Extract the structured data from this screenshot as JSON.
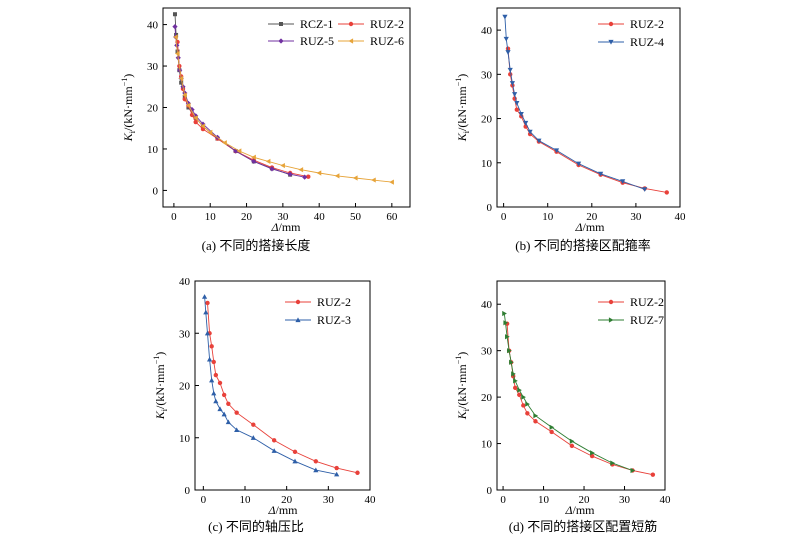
{
  "figure": {
    "panels": [
      {
        "id": "a",
        "caption": "(a) 不同的搭接长度"
      },
      {
        "id": "b",
        "caption": "(b) 不同的搭接区配箍率"
      },
      {
        "id": "c",
        "caption": "(c) 不同的轴压比"
      },
      {
        "id": "d",
        "caption": "(d) 不同的搭接区配置短筋"
      }
    ]
  },
  "chart_data": [
    {
      "id": "a",
      "type": "line",
      "title": "(a) 不同的搭接长度",
      "xlabel_symbol": "Δ",
      "xlabel_unit": "/mm",
      "ylabel_symbol": "K",
      "ylabel_sub": "i",
      "ylabel_unit": "/(kN·mm",
      "ylabel_sup": "−1",
      "ylabel_close": ")",
      "xlim": [
        -3,
        65
      ],
      "ylim": [
        -4,
        44
      ],
      "xticks": [
        0,
        10,
        20,
        30,
        40,
        50,
        60
      ],
      "yticks": [
        0,
        10,
        20,
        30,
        40
      ],
      "grid": false,
      "legend": "top-right, two columns",
      "series": [
        {
          "name": "RCZ-1",
          "color": "#555555",
          "marker": "square",
          "x": [
            0.3,
            0.6,
            1.0,
            1.5,
            2.0,
            3.0,
            4.0,
            6.0,
            8.0,
            12.0,
            17.0,
            22.0,
            27.0,
            32.0
          ],
          "y": [
            42.5,
            37.5,
            33.5,
            29.0,
            26.0,
            22.5,
            20.0,
            17.5,
            15.5,
            12.5,
            9.5,
            7.0,
            5.3,
            3.8
          ]
        },
        {
          "name": "RUZ-2",
          "color": "#e8413a",
          "marker": "circle",
          "x": [
            1.0,
            1.5,
            2.0,
            2.5,
            3.0,
            4.0,
            5.0,
            6.0,
            8.0,
            12.0,
            17.0,
            22.0,
            27.0,
            32.0,
            37.0
          ],
          "y": [
            35.8,
            30.0,
            27.5,
            24.5,
            22.0,
            20.5,
            18.2,
            16.5,
            14.8,
            12.5,
            9.5,
            7.3,
            5.5,
            4.2,
            3.3
          ]
        },
        {
          "name": "RUZ-5",
          "color": "#7030a0",
          "marker": "diamond",
          "x": [
            0.3,
            0.5,
            0.8,
            1.2,
            1.6,
            2.0,
            2.5,
            3.0,
            4.0,
            5.0,
            6.0,
            8.0,
            12.0,
            17.0,
            22.0,
            27.0,
            32.0,
            36.0
          ],
          "y": [
            39.5,
            37.0,
            35.0,
            32.0,
            29.0,
            27.0,
            25.0,
            23.5,
            21.0,
            19.5,
            18.0,
            16.0,
            12.8,
            9.5,
            7.0,
            5.2,
            3.9,
            3.2
          ]
        },
        {
          "name": "RUZ-6",
          "color": "#e7a43a",
          "marker": "triangle-left",
          "x": [
            0.5,
            1.0,
            2.0,
            3.0,
            4.0,
            6.0,
            8.0,
            10.0,
            14.0,
            18.0,
            22.0,
            26.0,
            30.0,
            35.0,
            40.0,
            45.0,
            50.0,
            55.0,
            60.0
          ],
          "y": [
            37.0,
            33.0,
            27.0,
            23.0,
            20.5,
            17.5,
            15.5,
            14.0,
            11.5,
            9.5,
            8.0,
            7.0,
            6.0,
            5.0,
            4.2,
            3.5,
            3.0,
            2.5,
            2.0
          ]
        }
      ]
    },
    {
      "id": "b",
      "type": "line",
      "title": "(b) 不同的搭接区配箍率",
      "xlabel_symbol": "Δ",
      "xlabel_unit": "/mm",
      "ylabel_symbol": "K",
      "ylabel_sub": "i",
      "ylabel_unit": "/(kN·mm",
      "ylabel_sup": "−1",
      "ylabel_close": ")",
      "xlim": [
        -1.5,
        40
      ],
      "ylim": [
        0,
        45
      ],
      "xticks": [
        0,
        10,
        20,
        30,
        40
      ],
      "yticks": [
        0,
        10,
        20,
        30,
        40
      ],
      "grid": false,
      "legend": "top-right",
      "series": [
        {
          "name": "RUZ-2",
          "color": "#e8413a",
          "marker": "circle",
          "x": [
            1.0,
            1.5,
            2.0,
            2.5,
            3.0,
            4.0,
            5.0,
            6.0,
            8.0,
            12.0,
            17.0,
            22.0,
            27.0,
            32.0,
            37.0
          ],
          "y": [
            35.8,
            30.0,
            27.5,
            24.5,
            22.0,
            20.5,
            18.2,
            16.5,
            14.8,
            12.5,
            9.5,
            7.3,
            5.5,
            4.2,
            3.3
          ]
        },
        {
          "name": "RUZ-4",
          "color": "#2e5fa8",
          "marker": "triangle-down",
          "x": [
            0.3,
            0.6,
            1.0,
            1.5,
            2.0,
            2.5,
            3.0,
            4.0,
            5.0,
            6.0,
            8.0,
            12.0,
            17.0,
            22.0,
            27.0,
            32.0
          ],
          "y": [
            43.0,
            38.0,
            35.0,
            31.0,
            28.0,
            25.5,
            23.5,
            21.0,
            19.0,
            17.0,
            15.0,
            12.8,
            9.8,
            7.5,
            5.8,
            4.0
          ]
        }
      ]
    },
    {
      "id": "c",
      "type": "line",
      "title": "(c) 不同的轴压比",
      "xlabel_symbol": "Δ",
      "xlabel_unit": "/mm",
      "ylabel_symbol": "K",
      "ylabel_sub": "i",
      "ylabel_unit": "/(kN·mm",
      "ylabel_sup": "−1",
      "ylabel_close": ")",
      "xlim": [
        -2,
        40
      ],
      "ylim": [
        0,
        40
      ],
      "xticks": [
        0,
        10,
        20,
        30,
        40
      ],
      "yticks": [
        0,
        10,
        20,
        30,
        40
      ],
      "grid": false,
      "legend": "top-right",
      "series": [
        {
          "name": "RUZ-2",
          "color": "#e8413a",
          "marker": "circle",
          "x": [
            1.0,
            1.5,
            2.0,
            2.5,
            3.0,
            4.0,
            5.0,
            6.0,
            8.0,
            12.0,
            17.0,
            22.0,
            27.0,
            32.0,
            37.0
          ],
          "y": [
            35.8,
            30.0,
            27.5,
            24.5,
            22.0,
            20.5,
            18.2,
            16.5,
            14.8,
            12.5,
            9.5,
            7.3,
            5.5,
            4.2,
            3.3
          ]
        },
        {
          "name": "RUZ-3",
          "color": "#2e5fa8",
          "marker": "triangle-up",
          "x": [
            0.3,
            0.6,
            1.0,
            1.5,
            2.0,
            2.5,
            3.0,
            4.0,
            5.0,
            6.0,
            8.0,
            12.0,
            17.0,
            22.0,
            27.0,
            32.0
          ],
          "y": [
            37.0,
            34.0,
            30.0,
            25.0,
            21.0,
            18.5,
            17.0,
            15.5,
            14.5,
            13.0,
            11.5,
            10.0,
            7.5,
            5.5,
            3.8,
            3.0
          ]
        }
      ]
    },
    {
      "id": "d",
      "type": "line",
      "title": "(d) 不同的搭接区配置短筋",
      "xlabel_symbol": "Δ",
      "xlabel_unit": "/mm",
      "ylabel_symbol": "K",
      "ylabel_sub": "i",
      "ylabel_unit": "/(kN·mm",
      "ylabel_sup": "−1",
      "ylabel_close": ")",
      "xlim": [
        -1.5,
        40
      ],
      "ylim": [
        0,
        45
      ],
      "xticks": [
        0,
        10,
        20,
        30,
        40
      ],
      "yticks": [
        0,
        10,
        20,
        30,
        40
      ],
      "grid": false,
      "legend": "top-right",
      "series": [
        {
          "name": "RUZ-2",
          "color": "#e8413a",
          "marker": "circle",
          "x": [
            1.0,
            1.5,
            2.0,
            2.5,
            3.0,
            4.0,
            5.0,
            6.0,
            8.0,
            12.0,
            17.0,
            22.0,
            27.0,
            32.0,
            37.0
          ],
          "y": [
            35.8,
            30.0,
            27.5,
            24.5,
            22.0,
            20.5,
            18.2,
            16.5,
            14.8,
            12.5,
            9.5,
            7.3,
            5.5,
            4.2,
            3.3
          ]
        },
        {
          "name": "RUZ-7",
          "color": "#2e7d32",
          "marker": "triangle-right",
          "x": [
            0.3,
            0.6,
            1.0,
            1.5,
            2.0,
            2.5,
            3.0,
            4.0,
            5.0,
            6.0,
            8.0,
            12.0,
            17.0,
            22.0,
            27.0,
            32.0
          ],
          "y": [
            38.0,
            36.0,
            33.0,
            30.0,
            27.5,
            25.0,
            23.5,
            21.5,
            20.0,
            18.5,
            16.0,
            13.5,
            10.5,
            8.0,
            5.8,
            4.2
          ]
        }
      ]
    }
  ]
}
